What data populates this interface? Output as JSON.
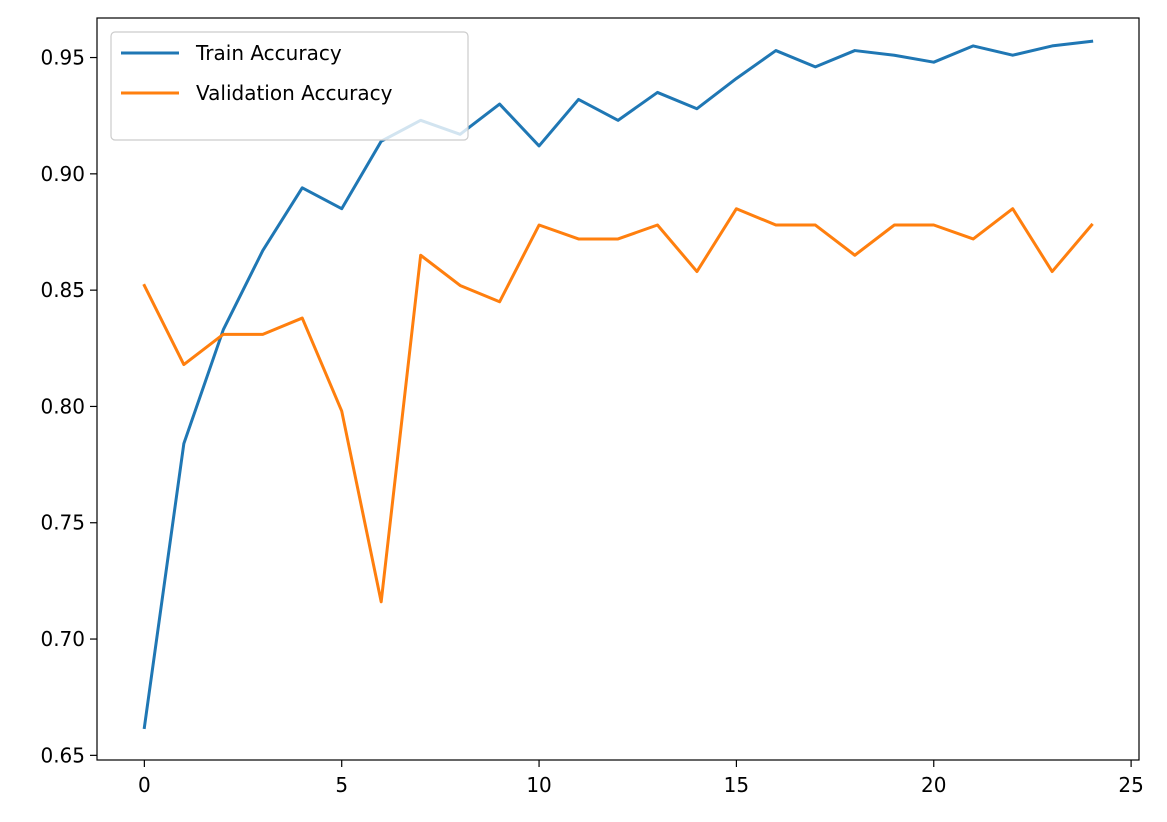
{
  "chart_data": {
    "type": "line",
    "title": "",
    "xlabel": "",
    "ylabel": "",
    "xlim": [
      -1.2,
      25.2
    ],
    "ylim": [
      0.648,
      0.967
    ],
    "x": [
      0,
      1,
      2,
      3,
      4,
      5,
      6,
      7,
      8,
      9,
      10,
      11,
      12,
      13,
      14,
      15,
      16,
      17,
      18,
      19,
      20,
      21,
      22,
      23,
      24
    ],
    "x_ticks": [
      0,
      5,
      10,
      15,
      20,
      25
    ],
    "y_ticks": [
      0.65,
      0.7,
      0.75,
      0.8,
      0.85,
      0.9,
      0.95
    ],
    "y_tick_labels": [
      "0.65",
      "0.70",
      "0.75",
      "0.80",
      "0.85",
      "0.90",
      "0.95"
    ],
    "grid": false,
    "legend_position": "top-left",
    "series": [
      {
        "name": "Train Accuracy",
        "color": "#1f77b4",
        "values": [
          0.662,
          0.784,
          0.833,
          0.867,
          0.894,
          0.885,
          0.914,
          0.923,
          0.917,
          0.93,
          0.912,
          0.932,
          0.923,
          0.935,
          0.928,
          0.941,
          0.953,
          0.946,
          0.953,
          0.951,
          0.948,
          0.955,
          0.951,
          0.955,
          0.957
        ]
      },
      {
        "name": "Validation Accuracy",
        "color": "#ff7f0e",
        "values": [
          0.852,
          0.818,
          0.831,
          0.831,
          0.838,
          0.798,
          0.716,
          0.865,
          0.852,
          0.845,
          0.878,
          0.872,
          0.872,
          0.878,
          0.858,
          0.885,
          0.878,
          0.878,
          0.865,
          0.878,
          0.878,
          0.872,
          0.885,
          0.858,
          0.878
        ]
      }
    ]
  }
}
